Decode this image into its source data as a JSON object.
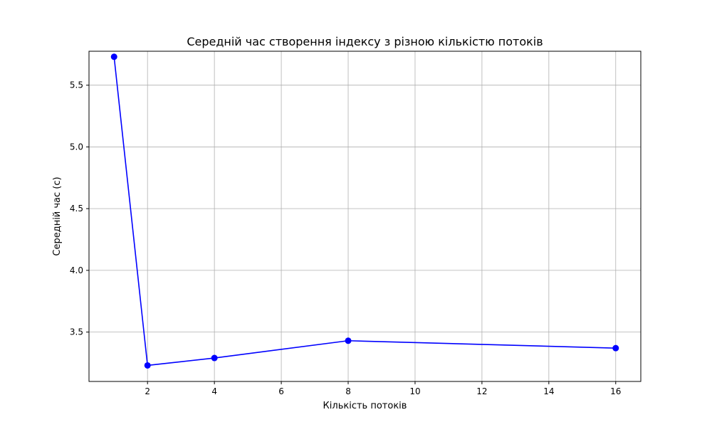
{
  "chart_data": {
    "type": "line",
    "title": "Середній час створення індексу з різною кількістю потоків",
    "xlabel": "Кількість потоків",
    "ylabel": "Середній час (с)",
    "xlim": [
      0.25,
      16.75
    ],
    "ylim": [
      3.1,
      5.775
    ],
    "x_ticks": [
      2,
      4,
      6,
      8,
      10,
      12,
      14,
      16
    ],
    "y_ticks": [
      3.5,
      4.0,
      4.5,
      5.0,
      5.5
    ],
    "x_tick_labels": [
      "2",
      "4",
      "6",
      "8",
      "10",
      "12",
      "14",
      "16"
    ],
    "y_tick_labels": [
      "3.5",
      "4.0",
      "4.5",
      "5.0",
      "5.5"
    ],
    "grid": true,
    "series": [
      {
        "color": "#0000ff",
        "marker": "circle",
        "x": [
          1,
          2,
          4,
          8,
          16
        ],
        "y": [
          5.73,
          3.23,
          3.29,
          3.43,
          3.37
        ]
      }
    ]
  }
}
